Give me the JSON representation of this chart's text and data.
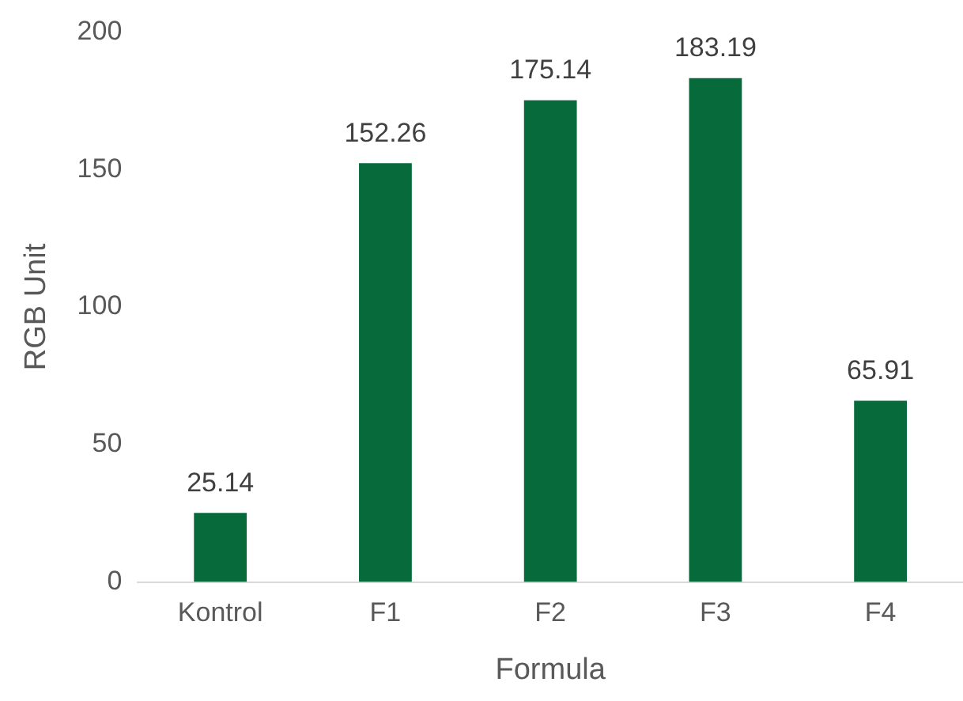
{
  "chart_data": {
    "type": "bar",
    "xlabel": "Formula",
    "ylabel": "RGB Unit",
    "categories": [
      "Kontrol",
      "F1",
      "F2",
      "F3",
      "F4"
    ],
    "values": [
      25.14,
      152.26,
      175.14,
      183.19,
      65.91
    ],
    "color": "#066a3a",
    "ylim": [
      0,
      200
    ],
    "yticks": [
      0,
      50,
      100,
      150,
      200
    ],
    "grid": false,
    "legend": false,
    "data_labels": true
  }
}
